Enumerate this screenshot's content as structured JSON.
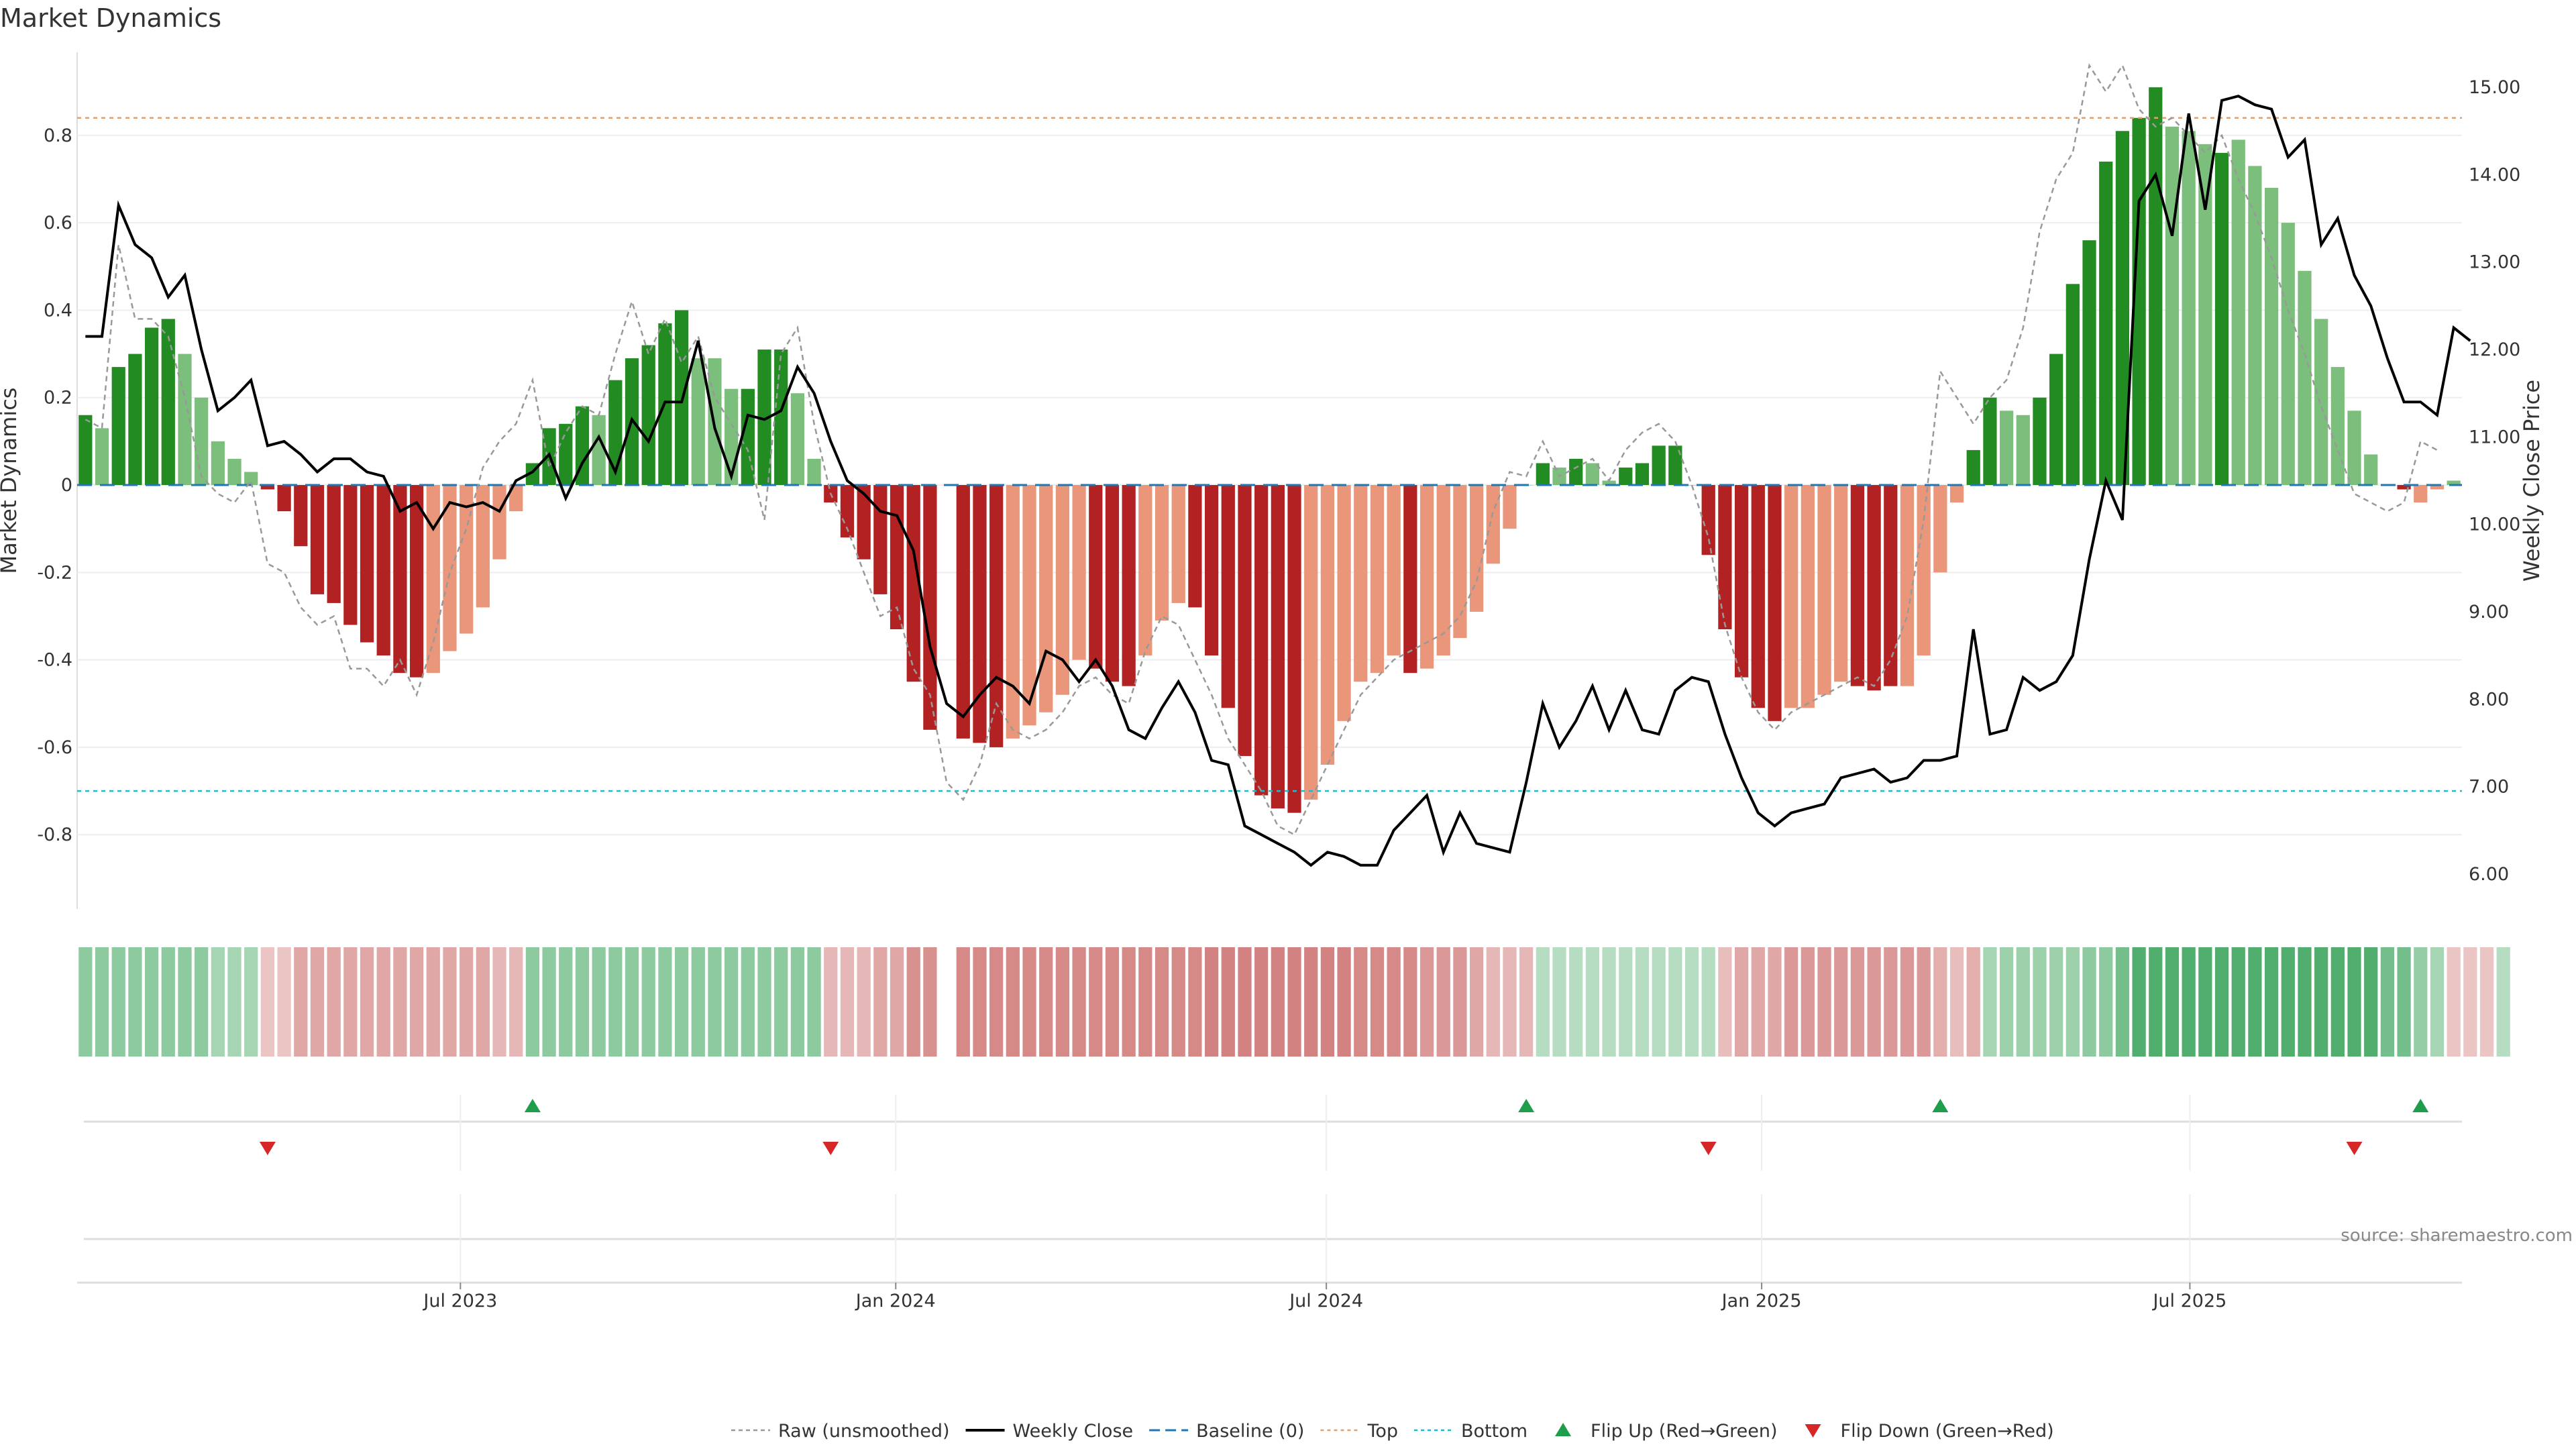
{
  "title": "Market Dynamics",
  "source": "source: sharemaestro.com",
  "colors": {
    "strong_green": "#228B22",
    "light_green": "#7CBF7C",
    "strong_red": "#B22222",
    "light_red": "#E9967A",
    "close_line": "#000000",
    "raw_line": "#999999",
    "baseline": "#1F77B4",
    "top_line": "#E0A070",
    "bottom_line": "#17BECF",
    "flip_up": "#1E9E4A",
    "flip_down": "#D62728"
  },
  "legend": [
    {
      "label": "Raw (unsmoothed)",
      "kind": "raw"
    },
    {
      "label": "Weekly Close",
      "kind": "close"
    },
    {
      "label": "Baseline (0)",
      "kind": "baseline"
    },
    {
      "label": "Top",
      "kind": "top"
    },
    {
      "label": "Bottom",
      "kind": "bottom"
    },
    {
      "label": "Flip Up (Red→Green)",
      "kind": "flip_up"
    },
    {
      "label": "Flip Down (Green→Red)",
      "kind": "flip_down"
    }
  ],
  "chart_data": {
    "type": "bar",
    "x_start": "2023-01-20",
    "x_step_days": 7,
    "left_axis": {
      "label": "Market Dynamics",
      "range": [
        -0.97,
        0.99
      ],
      "ticks": [
        "-0.8",
        "-0.6",
        "-0.4",
        "-0.2",
        "0",
        "0.2",
        "0.4",
        "0.6",
        "0.8"
      ],
      "tick_values": [
        -0.8,
        -0.6,
        -0.4,
        -0.2,
        0,
        0.2,
        0.4,
        0.6,
        0.8
      ]
    },
    "right_axis": {
      "label": "Weekly Close Price",
      "range": [
        5.6,
        15.4
      ],
      "ticks": [
        "6.00",
        "7.00",
        "8.00",
        "9.00",
        "10.00",
        "11.00",
        "12.00",
        "13.00",
        "14.00",
        "15.00"
      ],
      "tick_values": [
        6,
        7,
        8,
        9,
        10,
        11,
        12,
        13,
        14,
        15
      ]
    },
    "x_ticks": [
      {
        "label": "Jul 2023",
        "date": "2023-07-01"
      },
      {
        "label": "Jan 2024",
        "date": "2024-01-01"
      },
      {
        "label": "Jul 2024",
        "date": "2024-07-01"
      },
      {
        "label": "Jan 2025",
        "date": "2025-01-01"
      },
      {
        "label": "Jul 2025",
        "date": "2025-07-01"
      }
    ],
    "top_level": 0.84,
    "bottom_level": -0.7,
    "bars": [
      0.16,
      0.13,
      0.27,
      0.3,
      0.36,
      0.38,
      0.3,
      0.2,
      0.1,
      0.06,
      0.03,
      -0.01,
      -0.06,
      -0.14,
      -0.25,
      -0.27,
      -0.32,
      -0.36,
      -0.39,
      -0.43,
      -0.44,
      -0.43,
      -0.38,
      -0.34,
      -0.28,
      -0.17,
      -0.06,
      0.05,
      0.13,
      0.14,
      0.18,
      0.16,
      0.24,
      0.29,
      0.32,
      0.37,
      0.4,
      0.29,
      0.29,
      0.22,
      0.22,
      0.31,
      0.31,
      0.21,
      0.06,
      -0.04,
      -0.12,
      -0.17,
      -0.25,
      -0.33,
      -0.45,
      -0.56,
      null,
      -0.58,
      -0.59,
      -0.6,
      -0.58,
      -0.55,
      -0.52,
      -0.48,
      -0.4,
      -0.42,
      -0.45,
      -0.46,
      -0.39,
      -0.31,
      -0.27,
      -0.28,
      -0.39,
      -0.51,
      -0.62,
      -0.71,
      -0.74,
      -0.75,
      -0.72,
      -0.64,
      -0.54,
      -0.45,
      -0.43,
      -0.39,
      -0.43,
      -0.42,
      -0.39,
      -0.35,
      -0.29,
      -0.18,
      -0.1,
      0,
      0.05,
      0.04,
      0.06,
      0.05,
      0.01,
      0.04,
      0.05,
      0.09,
      0.09,
      0,
      -0.16,
      -0.33,
      -0.44,
      -0.51,
      -0.54,
      -0.51,
      -0.51,
      -0.48,
      -0.45,
      -0.46,
      -0.47,
      -0.46,
      -0.46,
      -0.39,
      -0.2,
      -0.04,
      0.08,
      0.2,
      0.17,
      0.16,
      0.2,
      0.3,
      0.46,
      0.56,
      0.74,
      0.81,
      0.84,
      0.91,
      0.82,
      0.81,
      0.78,
      0.76,
      0.79,
      0.73,
      0.68,
      0.6,
      0.49,
      0.38,
      0.27,
      0.17,
      0.07,
      0,
      -0.01,
      -0.04,
      -0.01,
      0.01
    ],
    "bar_strength": [
      "s",
      "l",
      "s",
      "s",
      "s",
      "s",
      "l",
      "l",
      "l",
      "l",
      "l",
      "s",
      "s",
      "s",
      "s",
      "s",
      "s",
      "s",
      "s",
      "s",
      "s",
      "l",
      "l",
      "l",
      "l",
      "l",
      "l",
      "s",
      "s",
      "s",
      "s",
      "l",
      "s",
      "s",
      "s",
      "s",
      "s",
      "l",
      "l",
      "l",
      "s",
      "s",
      "s",
      "l",
      "l",
      "s",
      "s",
      "s",
      "s",
      "s",
      "s",
      "s",
      "s",
      "s",
      "s",
      "s",
      "l",
      "l",
      "l",
      "l",
      "l",
      "s",
      "s",
      "s",
      "l",
      "l",
      "l",
      "s",
      "s",
      "s",
      "s",
      "s",
      "s",
      "s",
      "l",
      "l",
      "l",
      "l",
      "l",
      "l",
      "s",
      "l",
      "l",
      "l",
      "l",
      "l",
      "l",
      "l",
      "s",
      "l",
      "s",
      "l",
      "l",
      "s",
      "s",
      "s",
      "s",
      "l",
      "s",
      "s",
      "s",
      "s",
      "s",
      "l",
      "l",
      "l",
      "l",
      "s",
      "s",
      "s",
      "l",
      "l",
      "l",
      "l",
      "s",
      "s",
      "l",
      "l",
      "s",
      "s",
      "s",
      "s",
      "s",
      "s",
      "s",
      "s",
      "l",
      "l",
      "l",
      "s",
      "l",
      "l",
      "l",
      "l",
      "l",
      "l",
      "l",
      "l",
      "l",
      "s",
      "s",
      "l",
      "l"
    ],
    "close": [
      12.15,
      12.15,
      13.65,
      13.2,
      13.05,
      12.6,
      12.85,
      12.0,
      11.3,
      11.45,
      11.65,
      10.9,
      10.95,
      10.8,
      10.6,
      10.75,
      10.75,
      10.6,
      10.55,
      10.15,
      10.25,
      9.95,
      10.25,
      10.2,
      10.25,
      10.15,
      10.5,
      10.6,
      10.8,
      10.3,
      10.7,
      11.0,
      10.6,
      11.2,
      10.95,
      11.4,
      11.4,
      12.1,
      11.1,
      10.55,
      11.25,
      11.2,
      11.3,
      11.8,
      11.5,
      10.95,
      10.5,
      10.35,
      10.15,
      10.1,
      9.7,
      8.6,
      7.95,
      7.8,
      8.05,
      8.25,
      8.15,
      7.95,
      8.55,
      8.45,
      8.2,
      8.45,
      8.15,
      7.65,
      7.55,
      7.9,
      8.2,
      7.85,
      7.3,
      7.25,
      6.55,
      6.45,
      6.35,
      6.25,
      6.1,
      6.25,
      6.2,
      6.1,
      6.1,
      6.5,
      6.7,
      6.9,
      6.25,
      6.7,
      6.35,
      6.3,
      6.25,
      7.05,
      7.95,
      7.45,
      7.75,
      8.15,
      7.65,
      8.1,
      7.65,
      7.6,
      8.1,
      8.25,
      8.2,
      7.6,
      7.1,
      6.7,
      6.55,
      6.7,
      6.75,
      6.8,
      7.1,
      7.15,
      7.2,
      7.05,
      7.1,
      7.3,
      7.3,
      7.35,
      8.8,
      7.6,
      7.65,
      8.25,
      8.1,
      8.2,
      8.5,
      9.6,
      10.5,
      10.05,
      13.7,
      14.0,
      13.3,
      14.7,
      13.6,
      14.85,
      14.9,
      14.8,
      14.75,
      14.2,
      14.4,
      13.2,
      13.5,
      12.85,
      12.5,
      11.9,
      11.4,
      11.4,
      11.25,
      12.25,
      12.1
    ],
    "raw": [
      0.15,
      0.13,
      0.55,
      0.38,
      0.38,
      0.34,
      0.2,
      0.02,
      -0.02,
      -0.04,
      0.01,
      -0.18,
      -0.2,
      -0.28,
      -0.32,
      -0.3,
      -0.42,
      -0.42,
      -0.46,
      -0.4,
      -0.48,
      -0.36,
      -0.2,
      -0.1,
      0.04,
      0.1,
      0.14,
      0.24,
      0.04,
      0.12,
      0.18,
      0.16,
      0.3,
      0.42,
      0.3,
      0.38,
      0.28,
      0.34,
      0.2,
      0.14,
      0.08,
      -0.08,
      0.3,
      0.36,
      0.14,
      -0.02,
      -0.1,
      -0.2,
      -0.3,
      -0.28,
      -0.42,
      -0.48,
      -0.68,
      -0.72,
      -0.64,
      -0.5,
      -0.56,
      -0.58,
      -0.56,
      -0.52,
      -0.46,
      -0.44,
      -0.48,
      -0.5,
      -0.38,
      -0.3,
      -0.32,
      -0.4,
      -0.48,
      -0.58,
      -0.64,
      -0.7,
      -0.78,
      -0.8,
      -0.72,
      -0.64,
      -0.56,
      -0.48,
      -0.44,
      -0.4,
      -0.38,
      -0.36,
      -0.34,
      -0.3,
      -0.22,
      -0.06,
      0.03,
      0.02,
      0.1,
      0.02,
      0.04,
      0.06,
      0.01,
      0.08,
      0.12,
      0.14,
      0.1,
      0,
      -0.12,
      -0.32,
      -0.44,
      -0.52,
      -0.56,
      -0.52,
      -0.5,
      -0.48,
      -0.46,
      -0.44,
      -0.46,
      -0.4,
      -0.3,
      -0.08,
      0.26,
      0.2,
      0.14,
      0.2,
      0.24,
      0.36,
      0.58,
      0.7,
      0.76,
      0.96,
      0.9,
      0.96,
      0.86,
      0.82,
      0.84,
      0.8,
      0.76,
      0.8,
      0.7,
      0.62,
      0.52,
      0.4,
      0.3,
      0.18,
      0.08,
      -0.02,
      -0.04,
      -0.06,
      -0.04,
      0.1,
      0.08
    ],
    "regime": [
      0.45,
      0.45,
      0.45,
      0.45,
      0.45,
      0.45,
      0.45,
      0.45,
      0.3,
      0.3,
      0.3,
      -0.15,
      -0.15,
      -0.35,
      -0.35,
      -0.35,
      -0.35,
      -0.35,
      -0.35,
      -0.35,
      -0.35,
      -0.35,
      -0.35,
      -0.35,
      -0.35,
      -0.25,
      -0.25,
      0.45,
      0.45,
      0.45,
      0.45,
      0.45,
      0.45,
      0.45,
      0.45,
      0.45,
      0.45,
      0.45,
      0.45,
      0.45,
      0.45,
      0.45,
      0.45,
      0.45,
      0.45,
      -0.25,
      -0.25,
      -0.25,
      -0.35,
      -0.35,
      -0.5,
      -0.5,
      null,
      -0.55,
      -0.55,
      -0.55,
      -0.55,
      -0.55,
      -0.55,
      -0.55,
      -0.55,
      -0.55,
      -0.55,
      -0.55,
      -0.55,
      -0.55,
      -0.55,
      -0.55,
      -0.6,
      -0.6,
      -0.6,
      -0.6,
      -0.6,
      -0.6,
      -0.6,
      -0.6,
      -0.6,
      -0.55,
      -0.55,
      -0.55,
      -0.55,
      -0.45,
      -0.45,
      -0.45,
      -0.35,
      -0.25,
      -0.25,
      -0.25,
      0.2,
      0.2,
      0.2,
      0.2,
      0.2,
      0.2,
      0.2,
      0.2,
      0.2,
      0.2,
      0.2,
      -0.2,
      -0.35,
      -0.35,
      -0.35,
      -0.45,
      -0.45,
      -0.45,
      -0.45,
      -0.45,
      -0.45,
      -0.45,
      -0.45,
      -0.45,
      -0.3,
      -0.2,
      -0.3,
      0.3,
      0.35,
      0.35,
      0.35,
      0.35,
      0.35,
      0.45,
      0.45,
      0.6,
      0.8,
      0.8,
      0.8,
      0.8,
      0.8,
      0.8,
      0.8,
      0.8,
      0.8,
      0.8,
      0.8,
      0.8,
      0.8,
      0.8,
      0.8,
      0.6,
      0.6,
      0.4,
      0.3,
      -0.15,
      -0.15,
      -0.15,
      0.2
    ],
    "flips_up": [
      27,
      87,
      112,
      141
    ],
    "flips_down": [
      11,
      45,
      98,
      137
    ]
  }
}
